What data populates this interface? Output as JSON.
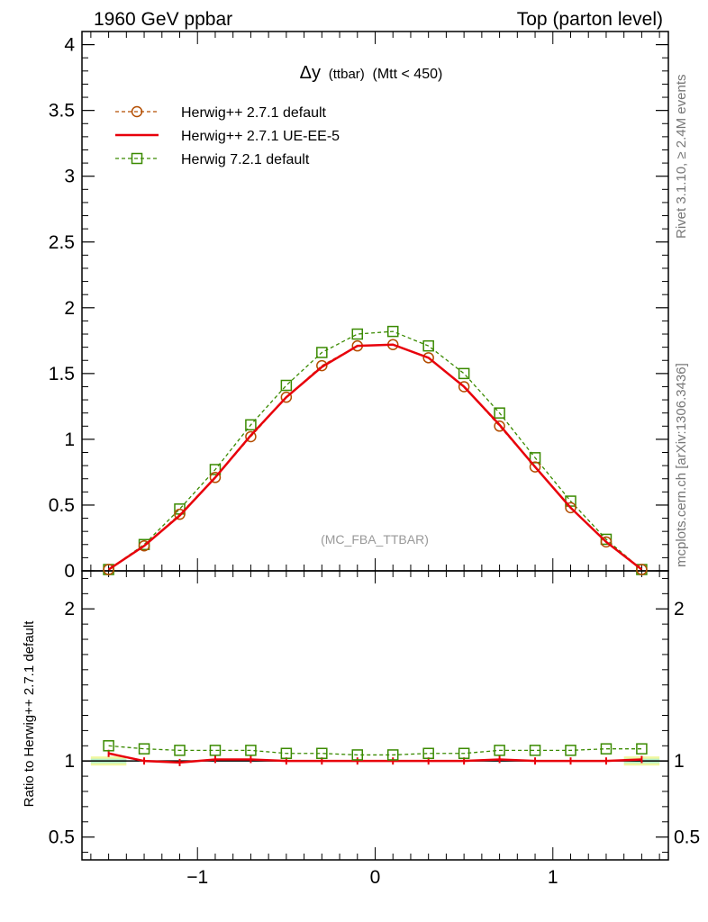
{
  "header": {
    "left": "1960 GeV ppbar",
    "right": "Top (parton level)"
  },
  "side_text": {
    "rivet": "Rivet 3.1.10, ≥ 2.4M events",
    "mcplots": "mcplots.cern.ch [arXiv:1306.3436]"
  },
  "chart_data": [
    {
      "type": "line",
      "panel": "main",
      "title_main": "Δy",
      "title_sub": "(ttbar)",
      "title_tail": "(Mtt < 450)",
      "watermark": "(MC_FBA_TTBAR)",
      "xlim": [
        -1.65,
        1.65
      ],
      "ylim": [
        0,
        4.1
      ],
      "x_ticks": [
        -1,
        0,
        1
      ],
      "x_tick_labels": [
        "−1",
        "0",
        "1"
      ],
      "y_ticks": [
        0,
        0.5,
        1,
        1.5,
        2,
        2.5,
        3,
        3.5,
        4
      ],
      "y_tick_labels": [
        "0",
        "0.5",
        "1",
        "1.5",
        "2",
        "2.5",
        "3",
        "3.5",
        "4"
      ],
      "legend_position": "top-left",
      "x": [
        -1.5,
        -1.3,
        -1.1,
        -0.9,
        -0.7,
        -0.5,
        -0.3,
        -0.1,
        0.1,
        0.3,
        0.5,
        0.7,
        0.9,
        1.1,
        1.3,
        1.5
      ],
      "series": [
        {
          "name": "Herwig++ 2.7.1 default",
          "color": "#b34d00",
          "style": "dashed",
          "marker": "circle",
          "values": [
            0.01,
            0.19,
            0.43,
            0.71,
            1.02,
            1.32,
            1.56,
            1.71,
            1.72,
            1.62,
            1.4,
            1.1,
            0.79,
            0.48,
            0.22,
            0.01
          ]
        },
        {
          "name": "Herwig++ 2.7.1 UE-EE-5",
          "color": "#e8000b",
          "style": "solid",
          "marker": "none",
          "values": [
            0.01,
            0.19,
            0.42,
            0.71,
            1.03,
            1.32,
            1.55,
            1.71,
            1.72,
            1.62,
            1.4,
            1.11,
            0.79,
            0.48,
            0.22,
            0.01
          ]
        },
        {
          "name": "Herwig 7.2.1 default",
          "color": "#3a8a00",
          "style": "dashed",
          "marker": "square",
          "values": [
            0.01,
            0.2,
            0.47,
            0.77,
            1.11,
            1.41,
            1.66,
            1.8,
            1.82,
            1.71,
            1.5,
            1.2,
            0.86,
            0.53,
            0.24,
            0.01
          ]
        }
      ]
    },
    {
      "type": "line",
      "panel": "ratio",
      "ylabel": "Ratio to Herwig++ 2.7.1 default",
      "xlim": [
        -1.65,
        1.65
      ],
      "ylim": [
        0.35,
        2.25
      ],
      "y_ticks": [
        0.5,
        1,
        2
      ],
      "y_tick_labels": [
        "0.5",
        "1",
        "2"
      ],
      "x": [
        -1.5,
        -1.3,
        -1.1,
        -0.9,
        -0.7,
        -0.5,
        -0.3,
        -0.1,
        0.1,
        0.3,
        0.5,
        0.7,
        0.9,
        1.1,
        1.3,
        1.5
      ],
      "series": [
        {
          "name": "Herwig++ 2.7.1 UE-EE-5",
          "color": "#e8000b",
          "values": [
            1.05,
            1.0,
            0.99,
            1.01,
            1.01,
            1.0,
            1.0,
            1.0,
            1.0,
            1.0,
            1.0,
            1.01,
            1.0,
            1.0,
            1.0,
            1.01
          ]
        },
        {
          "name": "Herwig 7.2.1 default",
          "color": "#3a8a00",
          "values": [
            1.1,
            1.08,
            1.07,
            1.07,
            1.07,
            1.05,
            1.05,
            1.04,
            1.04,
            1.05,
            1.05,
            1.07,
            1.07,
            1.07,
            1.08,
            1.08
          ]
        }
      ]
    }
  ]
}
